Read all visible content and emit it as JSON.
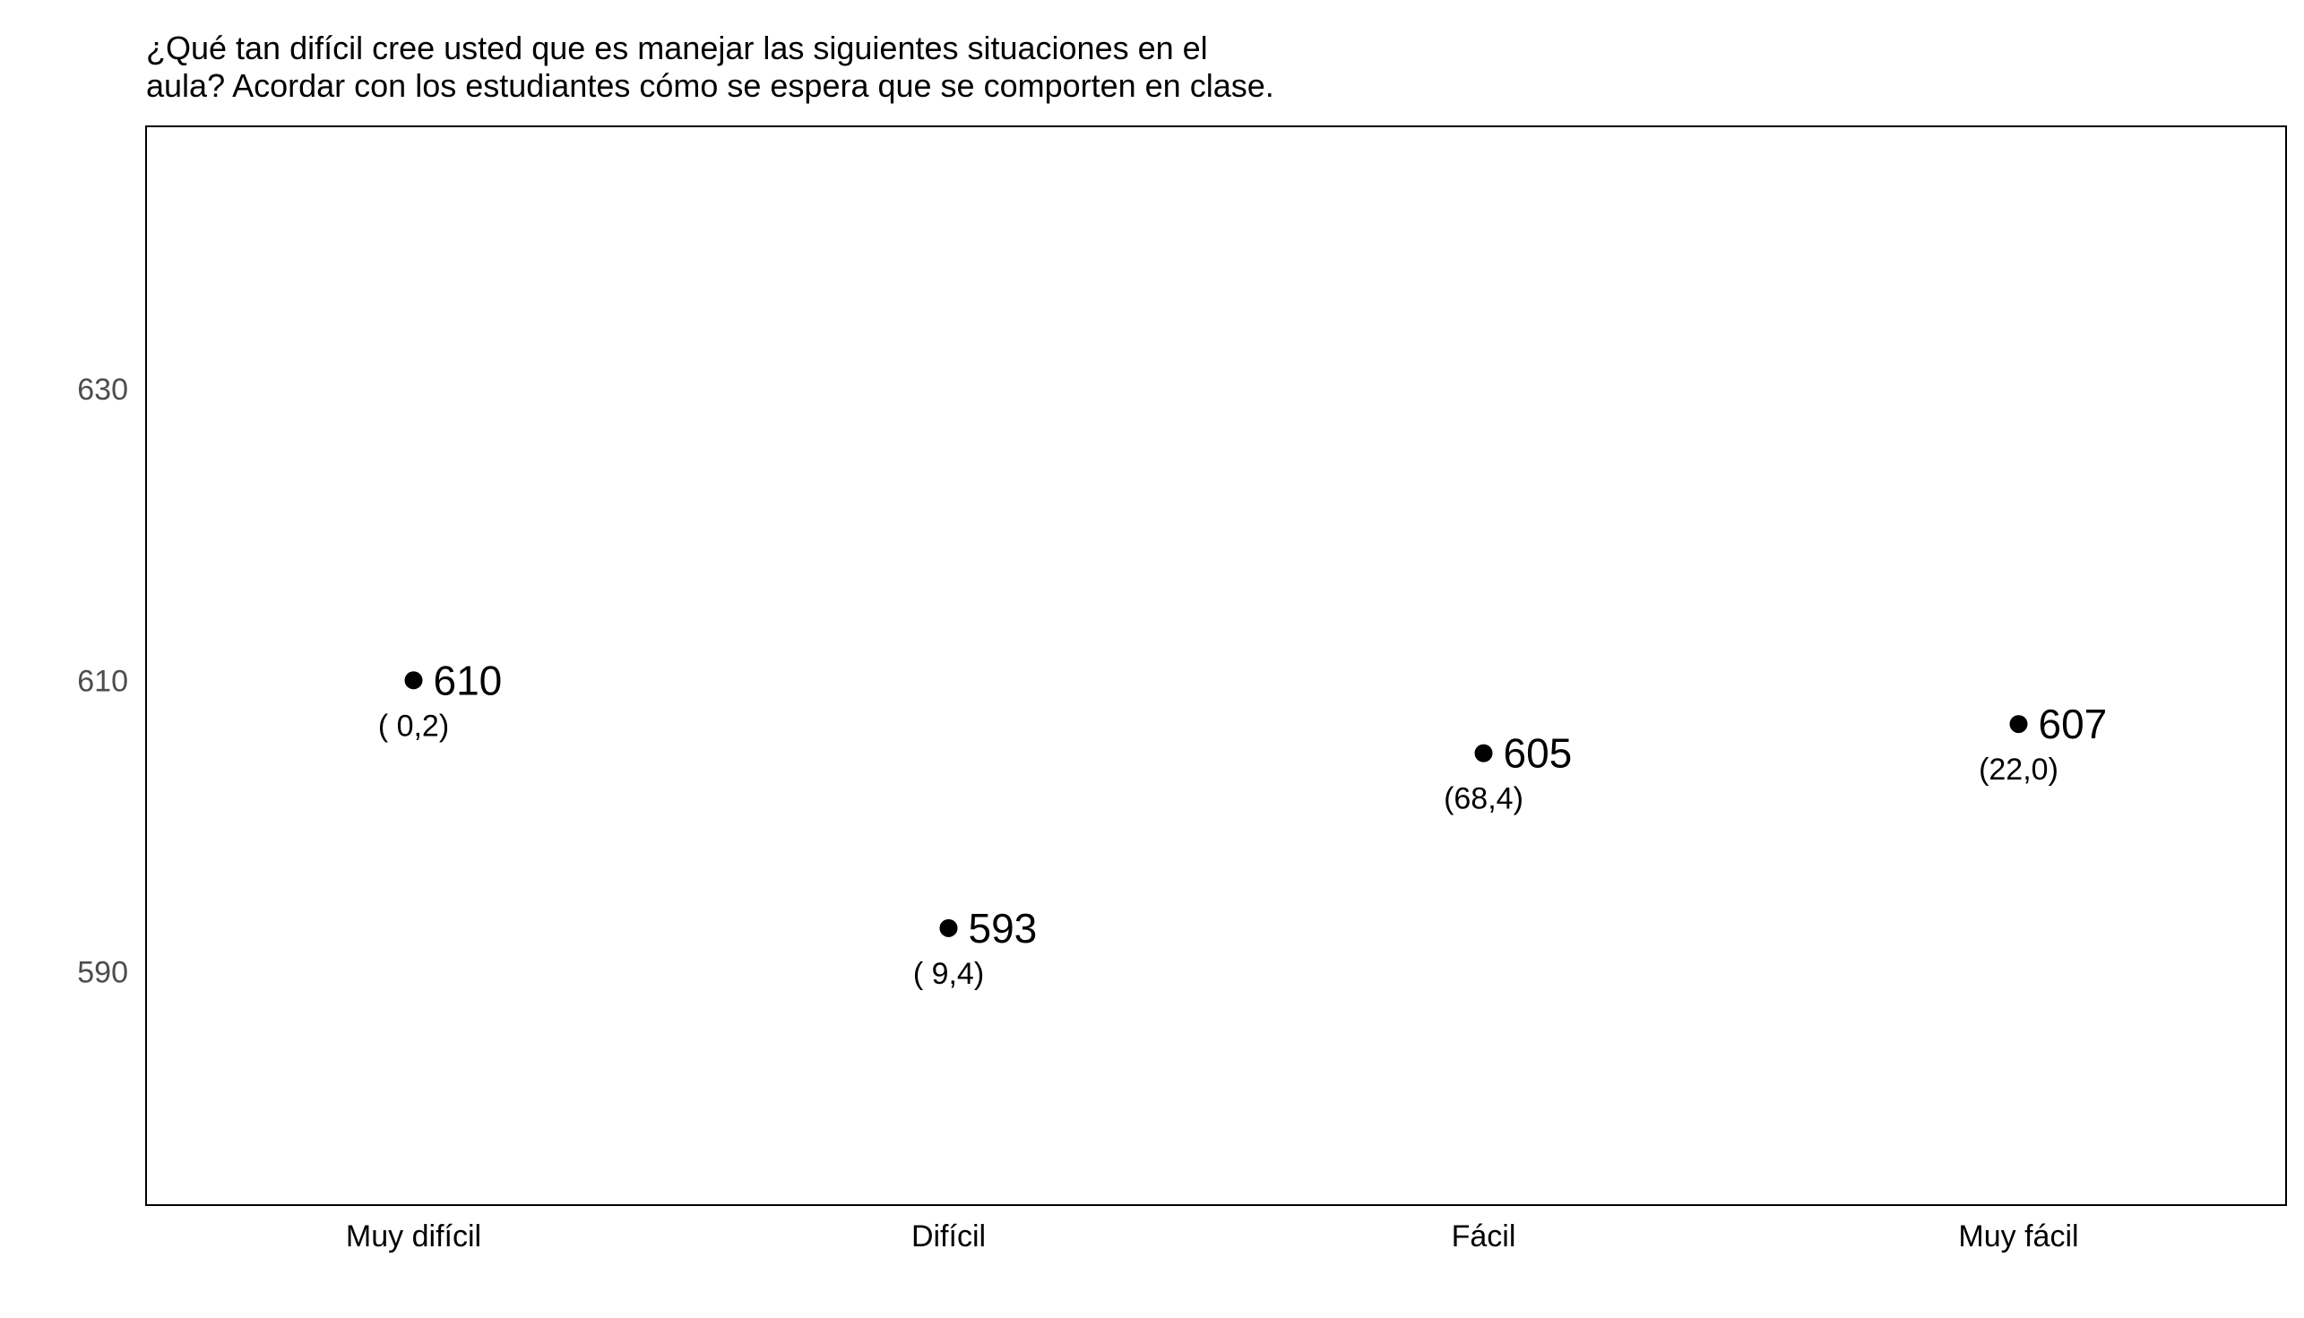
{
  "chart_data": {
    "type": "scatter",
    "title_lines": [
      "¿Qué tan difícil cree usted que es manejar las siguientes situaciones en el",
      "aula? Acordar con los estudiantes cómo se espera que se comporten en clase."
    ],
    "xlabel": "",
    "ylabel": "",
    "categories": [
      "Muy difícil",
      "Difícil",
      "Fácil",
      "Muy fácil"
    ],
    "values": [
      610,
      593,
      605,
      607
    ],
    "value_labels": [
      "610",
      "593",
      "605",
      "607"
    ],
    "percent_labels": [
      "( 0,2)",
      "( 9,4)",
      "(68,4)",
      "(22,0)"
    ],
    "yticks": [
      590,
      610,
      630
    ],
    "ylim": [
      574,
      648
    ],
    "grid": false,
    "legend": "none",
    "colors": {
      "point": "#000000",
      "frame": "#000000",
      "ytick_text": "#4d4d4d"
    }
  }
}
